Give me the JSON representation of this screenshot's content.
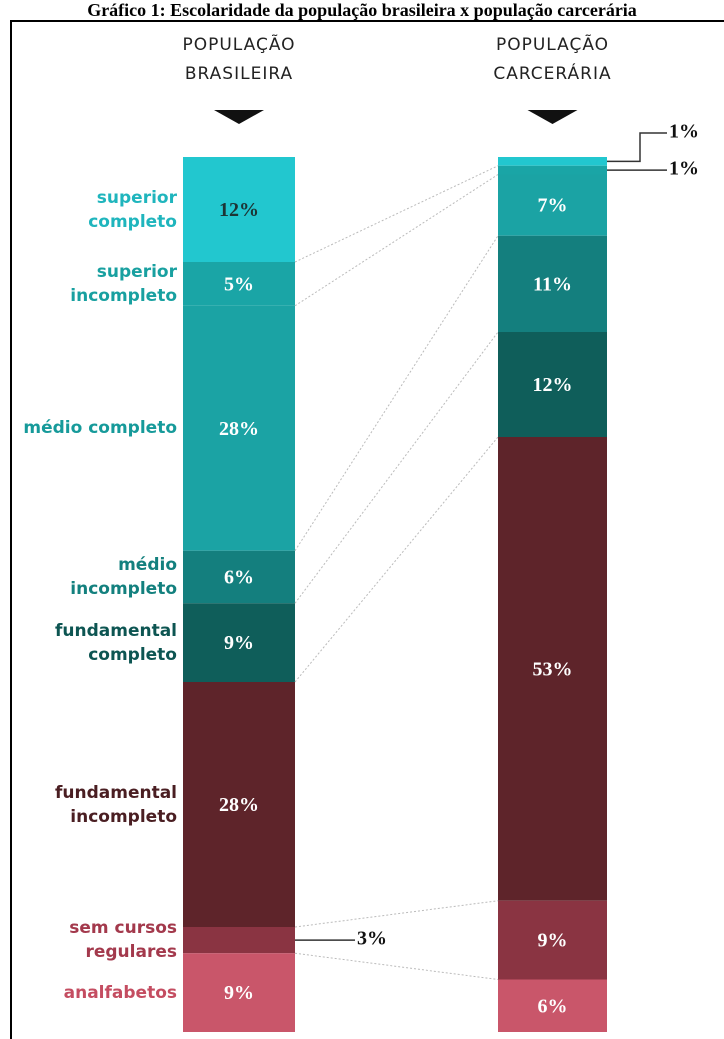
{
  "chart_data": {
    "type": "stacked-bar",
    "title": "Gráfico 1: Escolaridade da população brasileira x população carcerária",
    "categories": [
      "POPULAÇÃO BRASILEIRA",
      "POPULAÇÃO CARCERÁRIA"
    ],
    "series": [
      {
        "name": "superior completo",
        "color": "#22c7cf",
        "label_color": "#1fb5bd",
        "values": [
          12,
          1
        ],
        "value_labels": [
          "12%",
          "1%"
        ]
      },
      {
        "name": "superior incompleto",
        "color": "#1aa5a6",
        "label_color": "#18a0a0",
        "values": [
          5,
          1
        ],
        "value_labels": [
          "5%",
          "1%"
        ]
      },
      {
        "name": "médio completo",
        "color": "#1ba3a4",
        "label_color": "#169a9a",
        "values": [
          28,
          7
        ],
        "value_labels": [
          "28%",
          "7%"
        ]
      },
      {
        "name": "médio incompleto",
        "color": "#147f7e",
        "label_color": "#13807e",
        "values": [
          6,
          11
        ],
        "value_labels": [
          "6%",
          "11%"
        ]
      },
      {
        "name": "fundamental completo",
        "color": "#0f5e5a",
        "label_color": "#0d5552",
        "values": [
          9,
          12
        ],
        "value_labels": [
          "9%",
          "12%"
        ]
      },
      {
        "name": "fundamental incompleto",
        "color": "#5e242a",
        "label_color": "#4a1e22",
        "values": [
          28,
          53
        ],
        "value_labels": [
          "28%",
          "53%"
        ]
      },
      {
        "name": "sem cursos regulares",
        "color": "#8a3442",
        "label_color": "#a3394c",
        "values": [
          3,
          9
        ],
        "value_labels": [
          "3%",
          "9%"
        ]
      },
      {
        "name": "analfabetos",
        "color": "#c9566a",
        "label_color": "#c44d61",
        "values": [
          9,
          6
        ],
        "value_labels": [
          "9%",
          "6%"
        ]
      }
    ]
  }
}
